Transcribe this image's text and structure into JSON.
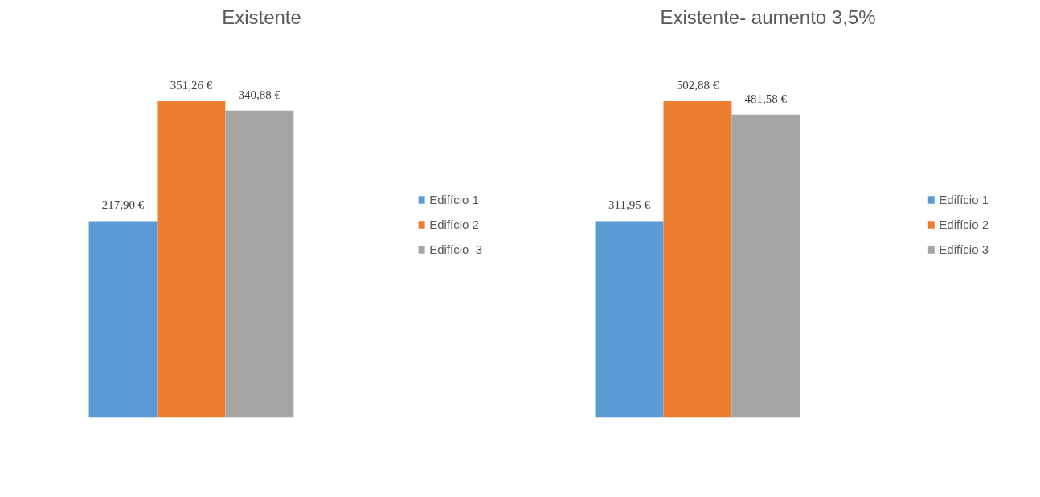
{
  "chart_data": [
    {
      "type": "bar",
      "title": "Existente",
      "categories": [
        null
      ],
      "legend": "right",
      "series": [
        {
          "name": "Edifício 1",
          "color": "#5b9bd5",
          "values": [
            217.9
          ],
          "value_labels": [
            "217,90 €"
          ]
        },
        {
          "name": "Edifício 2",
          "color": "#ed7d31",
          "values": [
            351.26
          ],
          "value_labels": [
            "351,26 €"
          ]
        },
        {
          "name": "Edifício  3",
          "color": "#a5a5a5",
          "values": [
            340.88
          ],
          "value_labels": [
            "340,88 €"
          ]
        }
      ]
    },
    {
      "type": "bar",
      "title": "Existente- aumento 3,5%",
      "categories": [
        null
      ],
      "legend": "right",
      "series": [
        {
          "name": "Edifício 1",
          "color": "#5b9bd5",
          "values": [
            311.95
          ],
          "value_labels": [
            "311,95 €"
          ]
        },
        {
          "name": "Edifício 2",
          "color": "#ed7d31",
          "values": [
            502.88
          ],
          "value_labels": [
            "502,88 €"
          ]
        },
        {
          "name": "Edifício 3",
          "color": "#a5a5a5",
          "values": [
            481.58
          ],
          "value_labels": [
            "481,58 €"
          ]
        }
      ]
    }
  ]
}
